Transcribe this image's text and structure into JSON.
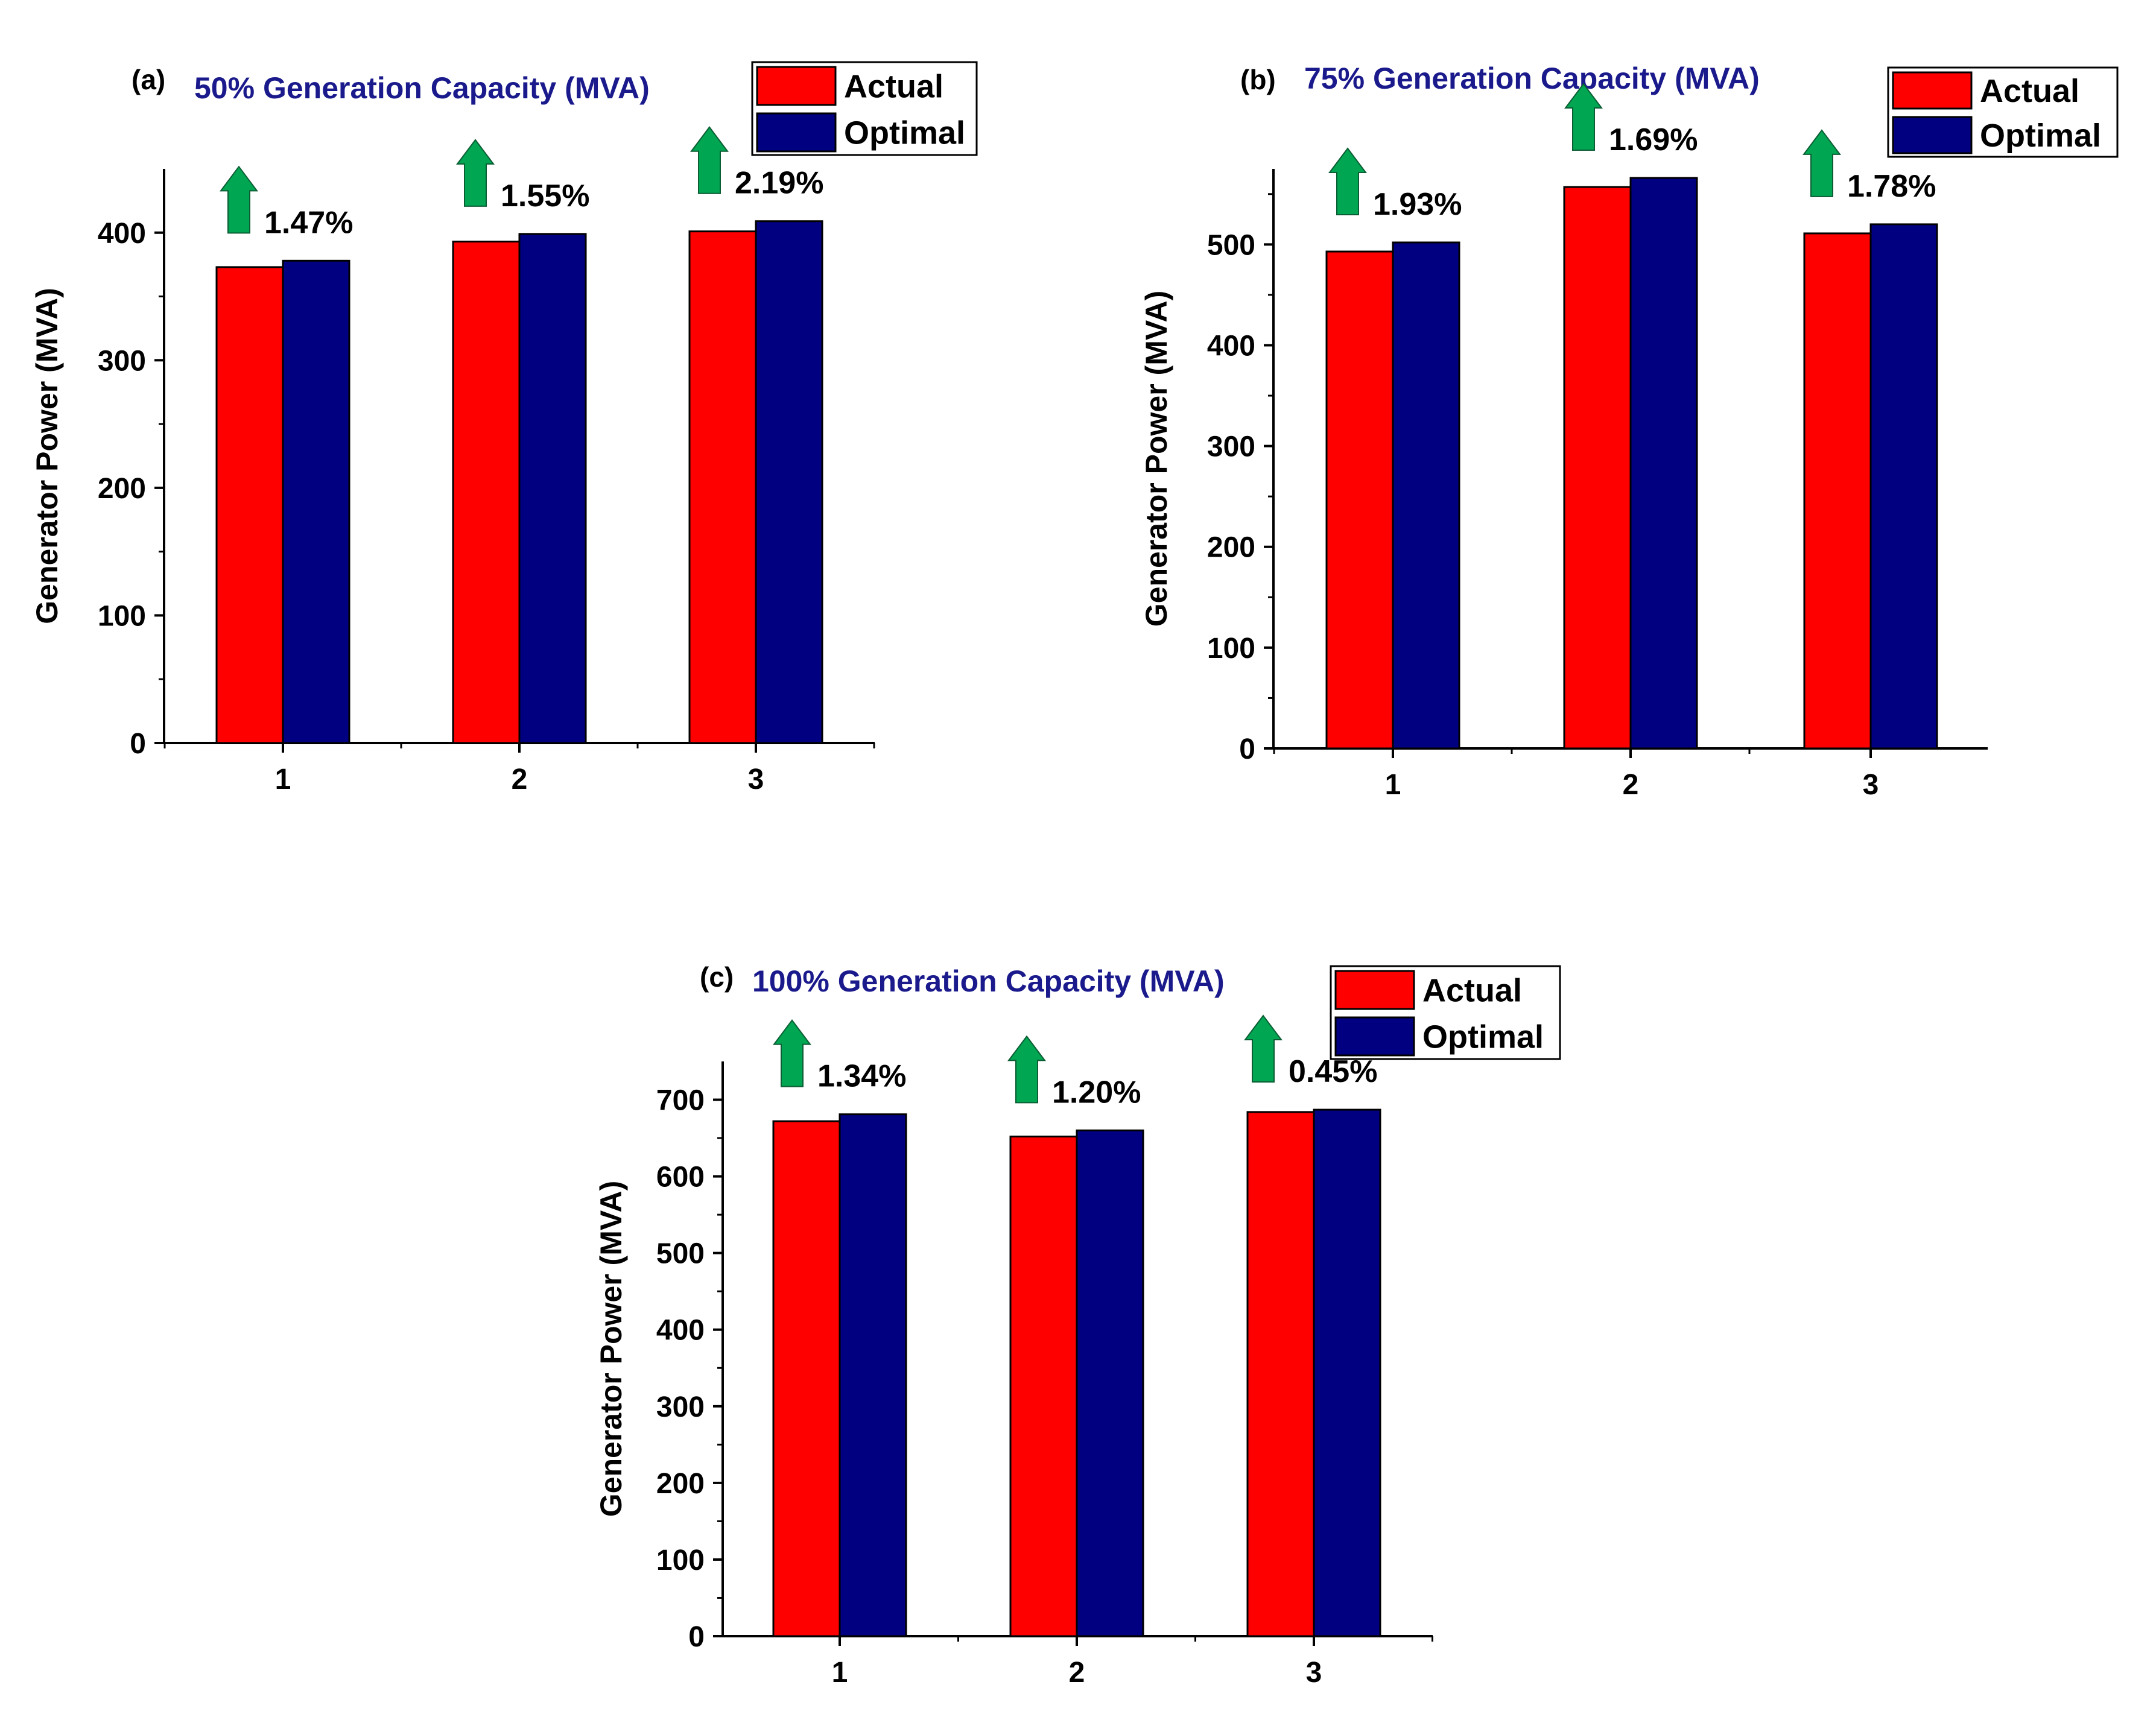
{
  "colors": {
    "actual": "#ff0000",
    "optimal": "#000080",
    "arrow": "#00a651",
    "title": "#1a1a8c",
    "axis": "#000000"
  },
  "chart_data": [
    {
      "type": "bar",
      "panel": "(a)",
      "title": "50% Generation Capacity (MVA)",
      "ylabel": "Generator Power (MVA)",
      "categories": [
        "1",
        "2",
        "3"
      ],
      "series": [
        {
          "name": "Actual",
          "values": [
            373,
            393,
            401
          ]
        },
        {
          "name": "Optimal",
          "values": [
            378,
            399,
            409
          ]
        }
      ],
      "annotations": [
        "1.47%",
        "1.55%",
        "2.19%"
      ],
      "annotation_icon": "up-arrow-icon",
      "yticks": [
        "0",
        "100",
        "200",
        "300",
        "400"
      ],
      "ylim": [
        0,
        450
      ],
      "legend": "top-right"
    },
    {
      "type": "bar",
      "panel": "(b)",
      "title": "75% Generation Capacity (MVA)",
      "ylabel": "Generator Power (MVA)",
      "categories": [
        "1",
        "2",
        "3"
      ],
      "series": [
        {
          "name": "Actual",
          "values": [
            493,
            557,
            511
          ]
        },
        {
          "name": "Optimal",
          "values": [
            502,
            566,
            520
          ]
        }
      ],
      "annotations": [
        "1.93%",
        "1.69%",
        "1.78%"
      ],
      "annotation_icon": "up-arrow-icon",
      "yticks": [
        "0",
        "100",
        "200",
        "300",
        "400",
        "500"
      ],
      "ylim": [
        0,
        575
      ],
      "legend": "top-right"
    },
    {
      "type": "bar",
      "panel": "(c)",
      "title": "100% Generation Capacity (MVA)",
      "ylabel": "Generator Power (MVA)",
      "categories": [
        "1",
        "2",
        "3"
      ],
      "series": [
        {
          "name": "Actual",
          "values": [
            672,
            652,
            684
          ]
        },
        {
          "name": "Optimal",
          "values": [
            681,
            660,
            687
          ]
        }
      ],
      "annotations": [
        "1.34%",
        "1.20%",
        "0.45%"
      ],
      "annotation_icon": "up-arrow-icon",
      "yticks": [
        "0",
        "100",
        "200",
        "300",
        "400",
        "500",
        "600",
        "700"
      ],
      "ylim": [
        0,
        750
      ],
      "legend": "top-right"
    }
  ]
}
